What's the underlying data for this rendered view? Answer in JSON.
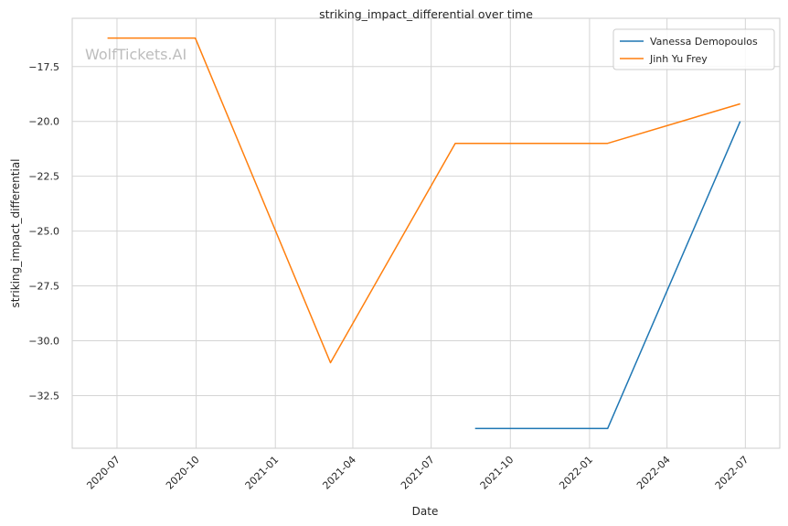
{
  "watermark": "WolfTickets.AI",
  "chart_data": {
    "type": "line",
    "title": "striking_impact_differential over time",
    "xlabel": "Date",
    "ylabel": "striking_impact_differential",
    "x_tick_labels": [
      "2020-07",
      "2020-10",
      "2021-01",
      "2021-04",
      "2021-07",
      "2021-10",
      "2022-01",
      "2022-04",
      "2022-07"
    ],
    "x_tick_dates": [
      "2020-07-01",
      "2020-10-01",
      "2021-01-01",
      "2021-04-01",
      "2021-07-01",
      "2021-10-01",
      "2022-01-01",
      "2022-04-01",
      "2022-07-01"
    ],
    "xlim": [
      "2020-05-10",
      "2022-08-10"
    ],
    "y_ticks": [
      -17.5,
      -20.0,
      -22.5,
      -25.0,
      -27.5,
      -30.0,
      -32.5
    ],
    "y_tick_labels": [
      "−17.5",
      "−20.0",
      "−22.5",
      "−25.0",
      "−27.5",
      "−30.0",
      "−32.5"
    ],
    "ylim": [
      -34.9,
      -15.3
    ],
    "grid": true,
    "legend_position": "top-right",
    "series": [
      {
        "name": "Vanessa Demopoulos",
        "color": "#1f77b4",
        "points": [
          {
            "x": "2021-08-21",
            "y": -34.0
          },
          {
            "x": "2022-01-22",
            "y": -34.0
          },
          {
            "x": "2022-06-25",
            "y": -20.0
          }
        ]
      },
      {
        "name": "Jinh Yu Frey",
        "color": "#ff7f0e",
        "points": [
          {
            "x": "2020-06-20",
            "y": -16.2
          },
          {
            "x": "2020-09-30",
            "y": -16.2
          },
          {
            "x": "2021-03-06",
            "y": -31.0
          },
          {
            "x": "2021-07-29",
            "y": -21.0
          },
          {
            "x": "2022-01-22",
            "y": -21.0
          },
          {
            "x": "2022-06-25",
            "y": -19.2
          }
        ]
      }
    ]
  }
}
